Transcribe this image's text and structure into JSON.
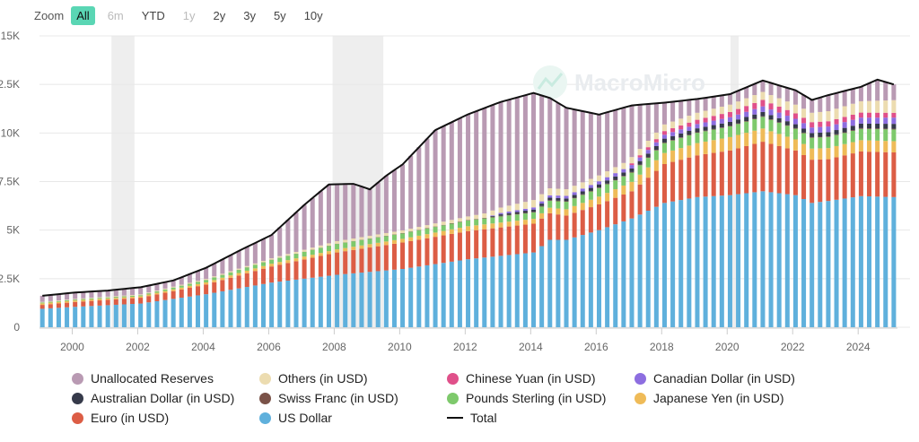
{
  "zoom": {
    "label": "Zoom",
    "buttons": [
      {
        "label": "All",
        "state": "active"
      },
      {
        "label": "6m",
        "state": "disabled"
      },
      {
        "label": "YTD",
        "state": "normal"
      },
      {
        "label": "1y",
        "state": "disabled"
      },
      {
        "label": "2y",
        "state": "normal"
      },
      {
        "label": "3y",
        "state": "normal"
      },
      {
        "label": "5y",
        "state": "normal"
      },
      {
        "label": "10y",
        "state": "normal"
      }
    ]
  },
  "watermark": "MacroMicro",
  "colors": {
    "unallocated": "#b99ab3",
    "others": "#ecdcb0",
    "cny": "#e0508a",
    "cad": "#8d6ee0",
    "aud": "#363a4a",
    "chf": "#7a5248",
    "gbp": "#7ec96c",
    "jpy": "#efbb58",
    "eur": "#dc5d45",
    "usd": "#5fb0dc",
    "total": "#111111",
    "recession": "#eeeeee",
    "grid": "#e8e8e8"
  },
  "chart_data": {
    "type": "bar",
    "stacked": true,
    "title": "",
    "xlabel": "",
    "ylabel": "",
    "ylim": [
      0,
      15000
    ],
    "y_ticks": [
      0,
      2500,
      5000,
      7500,
      10000,
      12500,
      15000
    ],
    "y_tick_labels": [
      "0",
      "2.5K",
      "5K",
      "7.5K",
      "10K",
      "12.5K",
      "15K"
    ],
    "x_ticks": [
      2000,
      2002,
      2004,
      2006,
      2008,
      2010,
      2012,
      2014,
      2016,
      2018,
      2020,
      2022,
      2024
    ],
    "x_tick_labels": [
      "2000",
      "2002",
      "2004",
      "2006",
      "2008",
      "2010",
      "2012",
      "2014",
      "2016",
      "2018",
      "2020",
      "2022",
      "2024"
    ],
    "x_range": [
      1999,
      2025.2
    ],
    "recession_bands": [
      [
        2001.2,
        2001.9
      ],
      [
        2007.95,
        2009.5
      ],
      [
        2020.1,
        2020.35
      ]
    ],
    "quarter_start": 1999.0,
    "quarter_count": 105,
    "total_anchors": [
      [
        1999.0,
        1620
      ],
      [
        2000.0,
        1790
      ],
      [
        2001.0,
        1890
      ],
      [
        2002.0,
        2060
      ],
      [
        2003.0,
        2410
      ],
      [
        2004.0,
        3060
      ],
      [
        2005.0,
        3930
      ],
      [
        2006.0,
        4750
      ],
      [
        2007.0,
        6300
      ],
      [
        2007.75,
        7350
      ],
      [
        2008.5,
        7380
      ],
      [
        2009.0,
        7100
      ],
      [
        2009.5,
        7800
      ],
      [
        2010.0,
        8380
      ],
      [
        2011.0,
        10150
      ],
      [
        2012.0,
        10960
      ],
      [
        2013.0,
        11600
      ],
      [
        2014.0,
        12060
      ],
      [
        2014.5,
        11800
      ],
      [
        2015.0,
        11300
      ],
      [
        2016.0,
        10950
      ],
      [
        2017.0,
        11420
      ],
      [
        2018.0,
        11560
      ],
      [
        2019.0,
        11750
      ],
      [
        2020.0,
        12000
      ],
      [
        2021.0,
        12700
      ],
      [
        2022.0,
        12200
      ],
      [
        2022.5,
        11700
      ],
      [
        2023.0,
        11950
      ],
      [
        2024.0,
        12380
      ],
      [
        2024.5,
        12750
      ],
      [
        2025.0,
        12500
      ]
    ],
    "usd_anchors": [
      [
        1999.0,
        950
      ],
      [
        2000.0,
        1050
      ],
      [
        2002.0,
        1220
      ],
      [
        2004.0,
        1700
      ],
      [
        2006.0,
        2300
      ],
      [
        2008.0,
        2700
      ],
      [
        2010.0,
        3000
      ],
      [
        2012.0,
        3500
      ],
      [
        2014.0,
        3850
      ],
      [
        2014.5,
        4500
      ],
      [
        2015.0,
        4500
      ],
      [
        2016.0,
        5000
      ],
      [
        2017.0,
        5600
      ],
      [
        2018.0,
        6400
      ],
      [
        2019.0,
        6700
      ],
      [
        2020.0,
        6800
      ],
      [
        2021.0,
        7000
      ],
      [
        2022.0,
        6800
      ],
      [
        2022.5,
        6400
      ],
      [
        2023.0,
        6500
      ],
      [
        2024.0,
        6750
      ],
      [
        2025.0,
        6700
      ]
    ],
    "eur_anchors": [
      [
        1999.0,
        200
      ],
      [
        2000.0,
        250
      ],
      [
        2002.0,
        300
      ],
      [
        2004.0,
        500
      ],
      [
        2006.0,
        830
      ],
      [
        2008.0,
        1150
      ],
      [
        2010.0,
        1360
      ],
      [
        2012.0,
        1450
      ],
      [
        2014.0,
        1480
      ],
      [
        2015.0,
        1250
      ],
      [
        2017.0,
        1400
      ],
      [
        2018.0,
        2000
      ],
      [
        2020.0,
        2300
      ],
      [
        2021.0,
        2550
      ],
      [
        2022.0,
        2300
      ],
      [
        2023.0,
        2150
      ],
      [
        2024.0,
        2300
      ],
      [
        2025.0,
        2300
      ]
    ],
    "gbp_anchors": [
      [
        1999.0,
        40
      ],
      [
        2002.0,
        50
      ],
      [
        2004.0,
        120
      ],
      [
        2006.0,
        200
      ],
      [
        2008.0,
        280
      ],
      [
        2010.0,
        280
      ],
      [
        2012.0,
        300
      ],
      [
        2014.0,
        330
      ],
      [
        2016.0,
        440
      ],
      [
        2018.0,
        510
      ],
      [
        2020.0,
        550
      ],
      [
        2021.0,
        600
      ],
      [
        2022.0,
        550
      ],
      [
        2025.0,
        600
      ]
    ],
    "jpy_anchors": [
      [
        1999.0,
        80
      ],
      [
        2002.0,
        75
      ],
      [
        2004.0,
        110
      ],
      [
        2006.0,
        140
      ],
      [
        2008.0,
        160
      ],
      [
        2010.0,
        190
      ],
      [
        2012.0,
        250
      ],
      [
        2014.0,
        250
      ],
      [
        2016.0,
        400
      ],
      [
        2018.0,
        570
      ],
      [
        2020.0,
        690
      ],
      [
        2021.0,
        680
      ],
      [
        2022.0,
        570
      ],
      [
        2024.0,
        580
      ],
      [
        2025.0,
        580
      ]
    ],
    "chf_anchors": [
      [
        1999.0,
        5
      ],
      [
        2002.0,
        6
      ],
      [
        2008.0,
        10
      ],
      [
        2012.0,
        25
      ],
      [
        2014.0,
        30
      ],
      [
        2016.0,
        30
      ],
      [
        2018.0,
        30
      ],
      [
        2020.0,
        30
      ],
      [
        2022.0,
        30
      ],
      [
        2025.0,
        40
      ]
    ],
    "aud_anchors": [
      [
        1999.0,
        0
      ],
      [
        2012.5,
        0
      ],
      [
        2013.0,
        80
      ],
      [
        2014.0,
        120
      ],
      [
        2016.0,
        160
      ],
      [
        2018.0,
        200
      ],
      [
        2020.0,
        200
      ],
      [
        2021.0,
        220
      ],
      [
        2022.0,
        200
      ],
      [
        2025.0,
        250
      ]
    ],
    "cad_anchors": [
      [
        1999.0,
        0
      ],
      [
        2012.5,
        0
      ],
      [
        2013.0,
        70
      ],
      [
        2014.0,
        110
      ],
      [
        2016.0,
        160
      ],
      [
        2018.0,
        200
      ],
      [
        2020.0,
        240
      ],
      [
        2021.0,
        290
      ],
      [
        2022.0,
        280
      ],
      [
        2025.0,
        320
      ]
    ],
    "cny_anchors": [
      [
        1999.0,
        0
      ],
      [
        2016.75,
        0
      ],
      [
        2017.0,
        90
      ],
      [
        2018.0,
        190
      ],
      [
        2019.0,
        220
      ],
      [
        2020.0,
        270
      ],
      [
        2021.0,
        330
      ],
      [
        2022.0,
        280
      ],
      [
        2025.0,
        250
      ]
    ],
    "others_anchors": [
      [
        1999.0,
        30
      ],
      [
        2002.0,
        40
      ],
      [
        2004.0,
        50
      ],
      [
        2006.0,
        70
      ],
      [
        2008.0,
        130
      ],
      [
        2010.0,
        140
      ],
      [
        2012.0,
        180
      ],
      [
        2014.0,
        380
      ],
      [
        2016.0,
        300
      ],
      [
        2018.0,
        340
      ],
      [
        2020.0,
        380
      ],
      [
        2022.0,
        450
      ],
      [
        2025.0,
        650
      ]
    ],
    "series": [
      {
        "key": "usd",
        "name": "US Dollar"
      },
      {
        "key": "eur",
        "name": "Euro (in USD)"
      },
      {
        "key": "jpy",
        "name": "Japanese Yen (in USD)"
      },
      {
        "key": "gbp",
        "name": "Pounds Sterling (in USD)"
      },
      {
        "key": "chf",
        "name": "Swiss Franc (in USD)"
      },
      {
        "key": "aud",
        "name": "Australian Dollar (in USD)"
      },
      {
        "key": "cad",
        "name": "Canadian Dollar (in USD)"
      },
      {
        "key": "cny",
        "name": "Chinese Yuan (in USD)"
      },
      {
        "key": "others",
        "name": "Others (in USD)"
      },
      {
        "key": "unallocated",
        "name": "Unallocated Reserves"
      },
      {
        "key": "total",
        "name": "Total"
      }
    ]
  },
  "legend": {
    "items": [
      {
        "label": "Unallocated Reserves",
        "color": "#b99ab3",
        "kind": "dot"
      },
      {
        "label": "Others (in USD)",
        "color": "#ecdcb0",
        "kind": "dot"
      },
      {
        "label": "Chinese Yuan (in USD)",
        "color": "#e0508a",
        "kind": "dot"
      },
      {
        "label": "Canadian Dollar (in USD)",
        "color": "#8d6ee0",
        "kind": "dot"
      },
      {
        "label": "Australian Dollar (in USD)",
        "color": "#363a4a",
        "kind": "dot"
      },
      {
        "label": "Swiss Franc (in USD)",
        "color": "#7a5248",
        "kind": "dot"
      },
      {
        "label": "Pounds Sterling (in USD)",
        "color": "#7ec96c",
        "kind": "dot"
      },
      {
        "label": "Japanese Yen (in USD)",
        "color": "#efbb58",
        "kind": "dot"
      },
      {
        "label": "Euro (in USD)",
        "color": "#dc5d45",
        "kind": "dot"
      },
      {
        "label": "US Dollar",
        "color": "#5fb0dc",
        "kind": "dot"
      },
      {
        "label": "Total",
        "color": "#111111",
        "kind": "line"
      }
    ]
  }
}
